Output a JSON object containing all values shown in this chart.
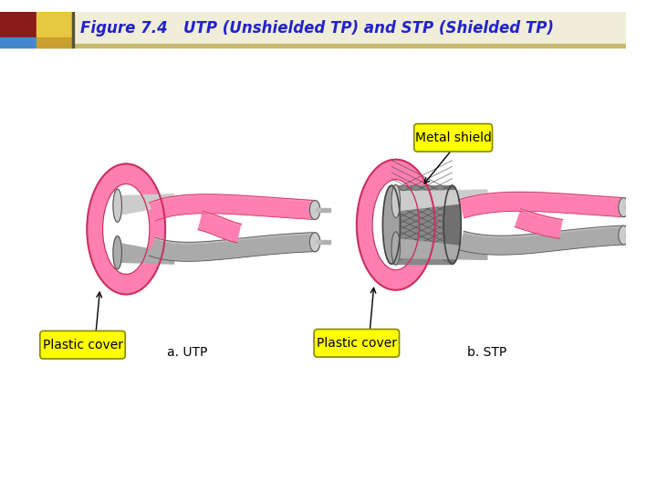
{
  "title": "Figure 7.4   UTP (Unshielded TP) and STP (Shielded TP)",
  "title_color": "#2222CC",
  "title_fontsize": 12,
  "bg_color": "#FFFFFF",
  "label_utp": "a. UTP",
  "label_stp": "b. STP",
  "label_plastic_cover": "Plastic cover",
  "label_metal_shield": "Metal shield",
  "pink_color": "#FF80B0",
  "pink_dark": "#CC3060",
  "pink_mid": "#FF99C0",
  "gray_color": "#999999",
  "gray_dark": "#555555",
  "gray_light": "#CCCCCC",
  "gray_mid": "#AAAAAA",
  "yellow_label_bg": "#FFFF00",
  "shield_fill": "#888888",
  "shield_dark": "#444444",
  "label_fontsize": 9,
  "caption_fontsize": 10,
  "header_bg": "#F0EED8",
  "header_line": "#C8B870",
  "sq1_color": "#8B1A1A",
  "sq2_color": "#E8C840",
  "sq3_color": "#4488CC",
  "sq4_color": "#C8A030"
}
